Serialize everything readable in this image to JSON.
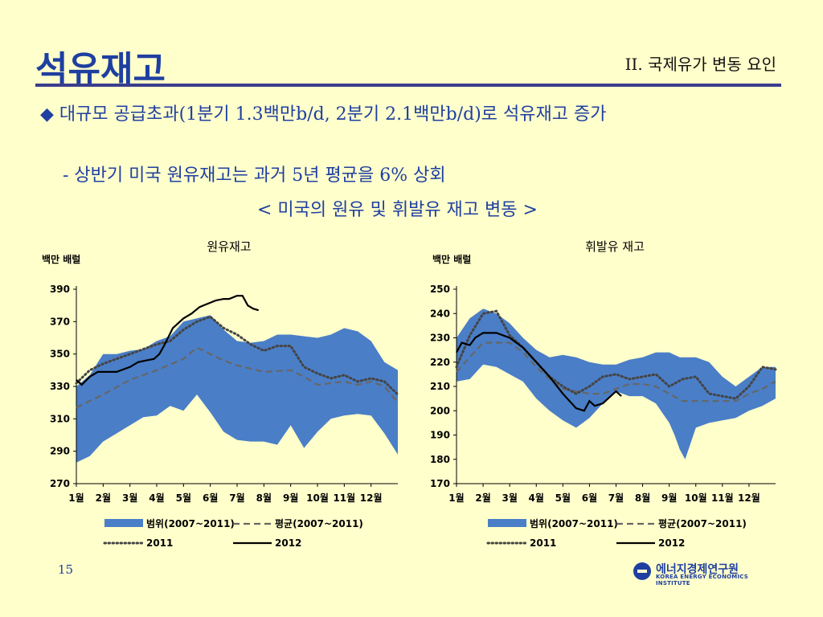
{
  "slide": {
    "title": "석유재고",
    "section": "II. 국제유가 변동 요인",
    "bullet_mark": "◆",
    "bullet": "대규모 공급초과(1분기 1.3백만b/d, 2분기 2.1백만b/d)로 석유재고 증가",
    "sub_bullet": "- 상반기 미국 원유재고는 과거 5년 평균을 6% 상회",
    "caption": "< 미국의 원유 및 휘발유 재고 변동 >",
    "page_number": "15",
    "logo_korean": "에너지경제연구원",
    "logo_english": "KOREA ENERGY ECONOMICS INSTITUTE",
    "colors": {
      "title": "#1F3FA0",
      "background": "#FFFFCC",
      "range": "#4A7EC7",
      "rule": "#3A3D8C"
    }
  },
  "chart_data": [
    {
      "type": "area",
      "title": "원유재고",
      "unit_label": "백만 배럴",
      "ylim": [
        270,
        390
      ],
      "yticks": [
        270,
        290,
        310,
        330,
        350,
        370,
        390
      ],
      "xlabels": [
        "1월",
        "2월",
        "3월",
        "4월",
        "5월",
        "6월",
        "7월",
        "8월",
        "9월",
        "10월",
        "11월",
        "12월"
      ],
      "x_range": [
        1,
        13
      ],
      "legend": [
        "범위(2007~2011)",
        "평균(2007~2011)",
        "2011",
        "2012"
      ],
      "series": [
        {
          "name": "범위(2007~2011)",
          "kind": "band",
          "x": [
            1,
            1.5,
            2,
            2.5,
            3,
            3.5,
            4,
            4.5,
            5,
            5.5,
            6,
            6.5,
            7,
            7.5,
            8,
            8.5,
            9,
            9.5,
            10,
            10.5,
            11,
            11.5,
            12,
            12.5,
            13
          ],
          "low": [
            283,
            287,
            296,
            301,
            306,
            311,
            312,
            318,
            315,
            325,
            314,
            302,
            297,
            296,
            296,
            294,
            306,
            292,
            302,
            310,
            312,
            313,
            312,
            301,
            288
          ],
          "high": [
            330,
            337,
            350,
            350,
            352,
            353,
            358,
            361,
            370,
            372,
            374,
            365,
            358,
            357,
            358,
            362,
            362,
            361,
            360,
            362,
            366,
            364,
            358,
            345,
            340
          ]
        },
        {
          "name": "평균(2007~2011)",
          "kind": "dash",
          "x": [
            1,
            2,
            3,
            4,
            5,
            5.5,
            6,
            6.5,
            7,
            7.5,
            8,
            9,
            9.5,
            10,
            11,
            11.5,
            12,
            12.5,
            13
          ],
          "values": [
            317,
            325,
            334,
            340,
            347,
            354,
            350,
            346,
            343,
            341,
            339,
            340,
            336,
            331,
            333,
            331,
            333,
            330,
            320
          ]
        },
        {
          "name": "2011",
          "kind": "dot",
          "x": [
            1,
            1.5,
            2,
            2.5,
            3,
            3.5,
            4,
            4.5,
            5,
            5.5,
            6,
            6.5,
            7,
            7.5,
            8,
            8.5,
            9,
            9.5,
            10,
            10.5,
            11,
            11.5,
            12,
            12.5,
            13
          ],
          "values": [
            332,
            340,
            344,
            347,
            350,
            353,
            356,
            358,
            365,
            370,
            373,
            366,
            362,
            356,
            352,
            355,
            355,
            342,
            338,
            335,
            337,
            333,
            335,
            333,
            325
          ]
        },
        {
          "name": "2012",
          "kind": "solid",
          "x": [
            1,
            1.2,
            1.5,
            1.8,
            2,
            2.5,
            3,
            3.3,
            3.6,
            3.9,
            4.1,
            4.3,
            4.6,
            5,
            5.3,
            5.6,
            5.9,
            6.2,
            6.5,
            6.7,
            7,
            7.2,
            7.4,
            7.6,
            7.8
          ],
          "values": [
            334,
            331,
            336,
            339,
            339,
            339,
            342,
            345,
            346,
            347,
            350,
            356,
            366,
            372,
            375,
            379,
            381,
            383,
            384,
            384,
            386,
            386,
            380,
            378,
            377
          ]
        }
      ]
    },
    {
      "type": "area",
      "title": "휘발유 재고",
      "unit_label": "백만 배럴",
      "ylim": [
        170,
        250
      ],
      "yticks": [
        170,
        180,
        190,
        200,
        210,
        220,
        230,
        240,
        250
      ],
      "xlabels": [
        "1월",
        "2월",
        "3월",
        "4월",
        "5월",
        "6월",
        "7월",
        "8월",
        "9월",
        "10월",
        "11월",
        "12월"
      ],
      "x_range": [
        1,
        13
      ],
      "legend": [
        "범위(2007~2011)",
        "평균(2007~2011)",
        "2011",
        "2012"
      ],
      "series": [
        {
          "name": "범위(2007~2011)",
          "kind": "band",
          "x": [
            1,
            1.5,
            2,
            2.5,
            3,
            3.5,
            4,
            4.5,
            5,
            5.5,
            6,
            6.5,
            7,
            7.5,
            8,
            8.5,
            9,
            9.2,
            9.4,
            9.6,
            10,
            10.5,
            11,
            11.5,
            12,
            12.5,
            13
          ],
          "low": [
            212,
            213,
            219,
            218,
            215,
            212,
            205,
            200,
            196,
            193,
            197,
            203,
            208,
            206,
            206,
            203,
            195,
            190,
            184,
            180,
            193,
            195,
            196,
            197,
            200,
            202,
            205
          ],
          "high": [
            230,
            238,
            242,
            240,
            236,
            230,
            225,
            222,
            223,
            222,
            220,
            219,
            219,
            221,
            222,
            224,
            224,
            223,
            222,
            222,
            222,
            220,
            214,
            210,
            214,
            218,
            218
          ]
        },
        {
          "name": "평균(2007~2011)",
          "kind": "dash",
          "x": [
            1,
            1.5,
            2,
            2.5,
            3,
            3.5,
            4,
            4.5,
            5,
            5.5,
            6,
            6.5,
            7,
            7.5,
            8,
            8.5,
            9,
            9.5,
            10,
            10.5,
            11,
            11.5,
            12,
            12.5,
            13
          ],
          "values": [
            216,
            222,
            228,
            228,
            228,
            224,
            218,
            213,
            209,
            208,
            207,
            207,
            209,
            211,
            211,
            210,
            207,
            204,
            204,
            204,
            204,
            204,
            207,
            209,
            212
          ]
        },
        {
          "name": "2011",
          "kind": "dot",
          "x": [
            1,
            1.5,
            2,
            2.5,
            3,
            3.5,
            4,
            4.5,
            5,
            5.5,
            6,
            6.5,
            7,
            7.5,
            8,
            8.5,
            9,
            9.5,
            10,
            10.5,
            11,
            11.5,
            12,
            12.5,
            13
          ],
          "values": [
            218,
            231,
            240,
            241,
            231,
            226,
            220,
            214,
            210,
            207,
            210,
            214,
            215,
            213,
            214,
            215,
            210,
            213,
            214,
            207,
            206,
            205,
            210,
            218,
            217
          ]
        },
        {
          "name": "2012",
          "kind": "solid",
          "x": [
            1,
            1.2,
            1.5,
            1.7,
            2,
            2.5,
            3,
            3.5,
            4,
            4.5,
            5,
            5.5,
            5.8,
            6,
            6.2,
            6.5,
            6.7,
            7,
            7.2
          ],
          "values": [
            224,
            228,
            227,
            230,
            232,
            232,
            230,
            226,
            220,
            214,
            207,
            201,
            200,
            204,
            202,
            203,
            205,
            208,
            206
          ]
        }
      ]
    }
  ]
}
